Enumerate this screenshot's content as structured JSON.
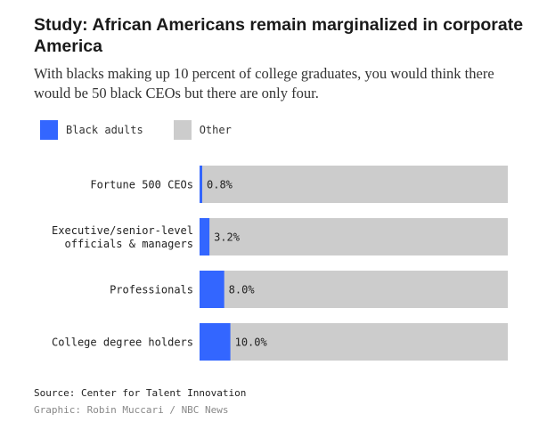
{
  "header": {
    "title": "Study: African Americans remain marginalized in corporate America",
    "subtitle": "With blacks making up 10 percent of college graduates, you would think there would be 50 black CEOs but there are only four."
  },
  "legend": {
    "black_label": "Black adults",
    "other_label": "Other"
  },
  "colors": {
    "black": "#3366ff",
    "other": "#cccccc"
  },
  "chart_data": {
    "type": "bar",
    "orientation": "horizontal",
    "stacked": true,
    "title": "Study: African Americans remain marginalized in corporate America",
    "xlim": [
      0,
      100
    ],
    "categories": [
      [
        "Fortune 500 CEOs"
      ],
      [
        "Executive/senior-level",
        "officials & managers"
      ],
      [
        "Professionals"
      ],
      [
        "College degree holders"
      ]
    ],
    "series": [
      {
        "name": "Black adults",
        "values": [
          0.8,
          3.2,
          8.0,
          10.0
        ],
        "labels": [
          "0.8%",
          "3.2%",
          "8.0%",
          "10.0%"
        ]
      },
      {
        "name": "Other",
        "values": [
          99.2,
          96.8,
          92.0,
          90.0
        ]
      }
    ]
  },
  "footer": {
    "source": "Source: Center for Talent Innovation",
    "credit": "Graphic: Robin Muccari / NBC News"
  }
}
